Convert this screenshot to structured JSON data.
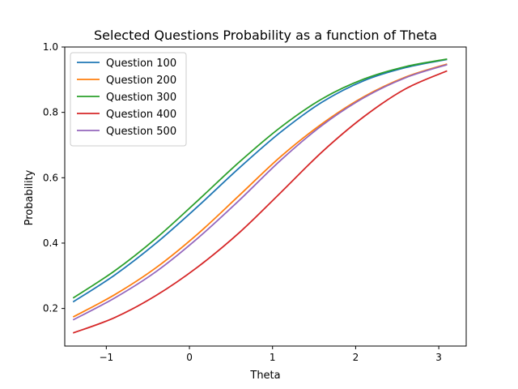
{
  "chart_data": {
    "type": "line",
    "title": "Selected Questions Probability as a function of Theta",
    "xlabel": "Theta",
    "ylabel": "Probability",
    "xlim": [
      -1.5,
      3.33
    ],
    "ylim": [
      0.085,
      1.0
    ],
    "xticks": [
      -1,
      0,
      1,
      2,
      3
    ],
    "xtick_labels": [
      "−1",
      "0",
      "1",
      "2",
      "3"
    ],
    "yticks": [
      0.2,
      0.4,
      0.6,
      0.8,
      1.0
    ],
    "ytick_labels": [
      "0.2",
      "0.4",
      "0.6",
      "0.8",
      "1.0"
    ],
    "grid": false,
    "legend_position": "upper-left",
    "x": [
      -1.4,
      -0.9,
      -0.4,
      0.1,
      0.6,
      1.1,
      1.6,
      2.1,
      2.6,
      3.1
    ],
    "series": [
      {
        "name": "Question 100",
        "color": "#1f77b4",
        "values": [
          0.22,
          0.302,
          0.4,
          0.512,
          0.63,
          0.74,
          0.832,
          0.897,
          0.937,
          0.962
        ]
      },
      {
        "name": "Question 200",
        "color": "#ff7f0e",
        "values": [
          0.174,
          0.242,
          0.325,
          0.428,
          0.546,
          0.665,
          0.766,
          0.848,
          0.908,
          0.948
        ]
      },
      {
        "name": "Question 300",
        "color": "#2ca02c",
        "values": [
          0.232,
          0.315,
          0.415,
          0.53,
          0.648,
          0.755,
          0.842,
          0.902,
          0.94,
          0.963
        ]
      },
      {
        "name": "Question 400",
        "color": "#d62728",
        "values": [
          0.125,
          0.172,
          0.24,
          0.327,
          0.432,
          0.555,
          0.68,
          0.787,
          0.872,
          0.927
        ]
      },
      {
        "name": "Question 500",
        "color": "#9467bd",
        "values": [
          0.165,
          0.232,
          0.313,
          0.415,
          0.531,
          0.654,
          0.761,
          0.845,
          0.906,
          0.946
        ]
      }
    ]
  }
}
